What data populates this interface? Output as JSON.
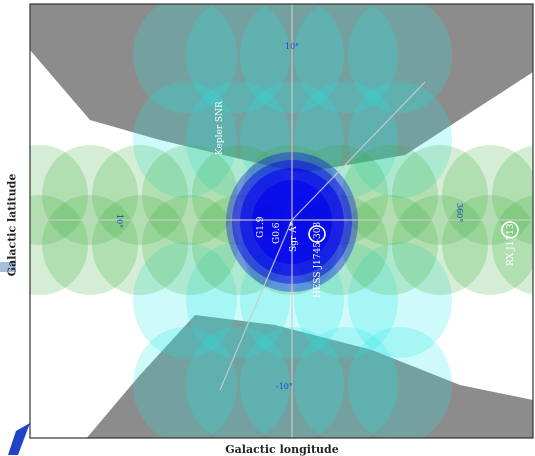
{
  "axes": {
    "xlabel": "Galactic longitude",
    "ylabel": "Galactic latitude"
  },
  "grid_labels": {
    "top_lat": "10°",
    "bottom_lat": "-10°",
    "left_lon": "10°",
    "right_lon": "360°"
  },
  "sources": {
    "kepler": "Kepler SNR",
    "g19": "G1.9",
    "g06": "G0.6",
    "sgr": "Sgr A*",
    "hess": "HESS J1745-303",
    "rx": "RX J1713"
  },
  "colors": {
    "grey_region": "#8c8c8c",
    "green_tiles": "#3cac3c",
    "cyan_tiles": "#22e8e8",
    "core_blue": "#0000ee",
    "grid": "#cccccc"
  }
}
